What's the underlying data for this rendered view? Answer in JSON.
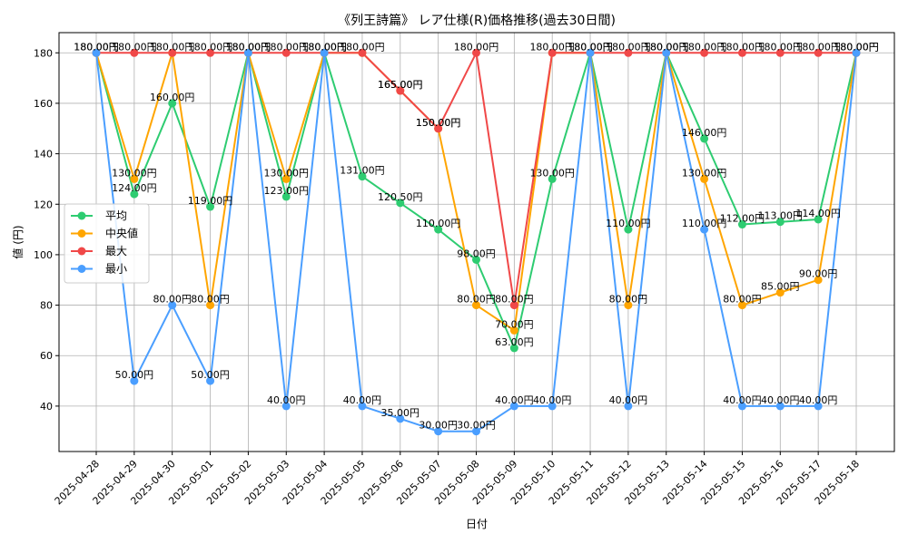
{
  "chart_data": {
    "type": "line",
    "title": "《列王詩篇》 レア仕様(R)価格推移(過去30日間)",
    "xlabel": "日付",
    "ylabel": "値 (円)",
    "ylim": [
      22,
      188
    ],
    "yticks": [
      40,
      60,
      80,
      100,
      120,
      140,
      160,
      180
    ],
    "value_suffix": "円",
    "grid": true,
    "legend_position": "center-left",
    "categories": [
      "2025-04-28",
      "2025-04-29",
      "2025-04-30",
      "2025-05-01",
      "2025-05-02",
      "2025-05-03",
      "2025-05-04",
      "2025-05-05",
      "2025-05-06",
      "2025-05-07",
      "2025-05-08",
      "2025-05-09",
      "2025-05-10",
      "2025-05-11",
      "2025-05-12",
      "2025-05-13",
      "2025-05-14",
      "2025-05-15",
      "2025-05-16",
      "2025-05-17",
      "2025-05-18"
    ],
    "series": [
      {
        "name": "平均",
        "color": "#2ecc71",
        "values": [
          180,
          124,
          160,
          119,
          180,
          123,
          180,
          131,
          120.5,
          110,
          98,
          63,
          130,
          180,
          110,
          180,
          146,
          112,
          113,
          114,
          180
        ],
        "label_values": [
          null,
          124,
          160,
          119,
          null,
          123,
          null,
          131,
          120.5,
          110,
          98,
          63,
          130,
          null,
          110,
          null,
          146,
          112,
          113,
          114,
          null
        ]
      },
      {
        "name": "中央値",
        "color": "#ffa500",
        "values": [
          180,
          130,
          180,
          80,
          180,
          130,
          180,
          180,
          165,
          150,
          80,
          70,
          180,
          180,
          80,
          180,
          130,
          80,
          85,
          90,
          180
        ],
        "label_values": [
          null,
          130,
          null,
          80,
          null,
          130,
          null,
          null,
          165,
          150,
          80,
          70,
          null,
          null,
          80,
          null,
          130,
          80,
          85,
          90,
          null
        ]
      },
      {
        "name": "最大",
        "color": "#f04848",
        "values": [
          180,
          180,
          180,
          180,
          180,
          180,
          180,
          180,
          165,
          150,
          180,
          80,
          180,
          180,
          180,
          180,
          180,
          180,
          180,
          180,
          180
        ],
        "label_values": [
          180,
          180,
          180,
          180,
          180,
          180,
          180,
          180,
          165,
          150,
          180,
          80,
          180,
          180,
          180,
          180,
          180,
          180,
          180,
          180,
          180
        ]
      },
      {
        "name": "最小",
        "color": "#4a9eff",
        "values": [
          180,
          50,
          80,
          50,
          180,
          40,
          180,
          40,
          35,
          30,
          30,
          40,
          40,
          180,
          40,
          180,
          110,
          40,
          40,
          40,
          180
        ],
        "label_values": [
          180,
          50,
          80,
          50,
          180,
          40,
          180,
          40,
          35,
          30,
          30,
          40,
          40,
          180,
          40,
          180,
          110,
          40,
          40,
          40,
          180
        ]
      }
    ]
  }
}
